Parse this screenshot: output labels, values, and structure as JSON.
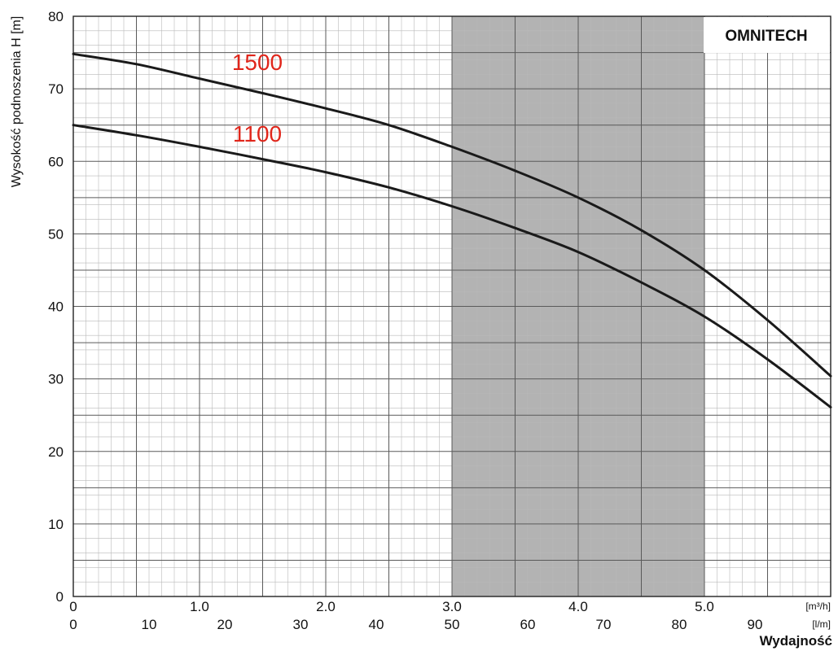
{
  "chart_data": {
    "type": "line",
    "brand": "OMNITECH",
    "ylabel": "Wysokość podnoszenia H [m]",
    "xlabel": "Wydajność",
    "ylim": [
      0,
      80
    ],
    "y_ticks": [
      "0",
      "10",
      "20",
      "30",
      "40",
      "50",
      "60",
      "70",
      "80"
    ],
    "x_axes": [
      {
        "unit": "[m³/h]",
        "lim": [
          0,
          6.0
        ],
        "tick_values": [
          0,
          1.0,
          2.0,
          3.0,
          4.0,
          5.0
        ],
        "tick_labels": [
          "0",
          "1.0",
          "2.0",
          "3.0",
          "4.0",
          "5.0"
        ]
      },
      {
        "unit": "[l/m]",
        "lim": [
          0,
          100
        ],
        "tick_values": [
          0,
          10,
          20,
          30,
          40,
          50,
          60,
          70,
          80,
          90
        ],
        "tick_labels": [
          "0",
          "10",
          "20",
          "30",
          "40",
          "50",
          "60",
          "70",
          "80",
          "90"
        ]
      }
    ],
    "x_unit": "m³/h",
    "shaded_region": {
      "x": [
        3.0,
        5.0
      ],
      "color": "#b3b3b3"
    },
    "grid": true,
    "series": [
      {
        "name": "1500",
        "color": "#e0261b",
        "x": [
          0,
          0.5,
          1.0,
          1.5,
          2.0,
          2.5,
          3.0,
          3.5,
          4.0,
          4.5,
          5.0,
          5.5,
          6.0
        ],
        "y": [
          74.8,
          73.4,
          71.4,
          69.4,
          67.3,
          65.0,
          62.0,
          58.7,
          55.0,
          50.5,
          45.0,
          38.1,
          30.4
        ]
      },
      {
        "name": "1100",
        "color": "#e0261b",
        "x": [
          0,
          0.5,
          1.0,
          1.5,
          2.0,
          2.5,
          3.0,
          3.5,
          4.0,
          4.5,
          5.0,
          5.5,
          6.0
        ],
        "y": [
          65.0,
          63.6,
          62.0,
          60.3,
          58.5,
          56.4,
          53.8,
          50.8,
          47.5,
          43.3,
          38.6,
          32.7,
          26.1
        ]
      }
    ]
  }
}
